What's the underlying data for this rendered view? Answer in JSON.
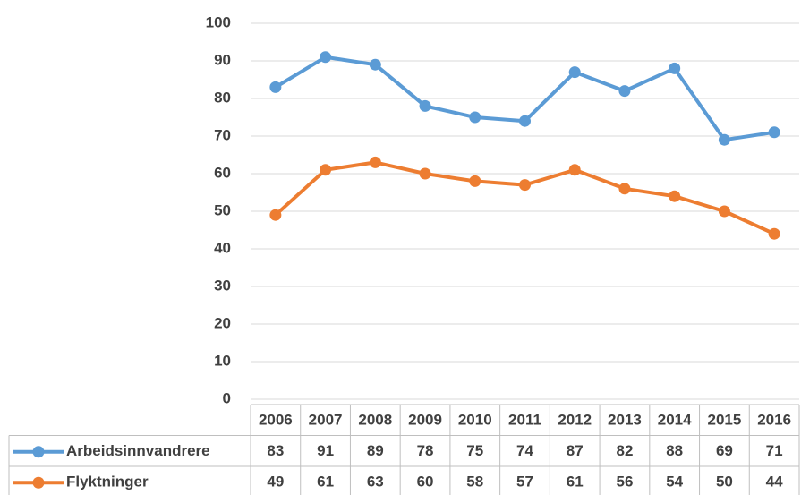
{
  "chart_data": {
    "type": "line",
    "categories": [
      "2006",
      "2007",
      "2008",
      "2009",
      "2010",
      "2011",
      "2012",
      "2013",
      "2014",
      "2015",
      "2016"
    ],
    "series": [
      {
        "name": "Arbeidsinnvandrere",
        "color": "#5b9bd5",
        "values": [
          83,
          91,
          89,
          78,
          75,
          74,
          87,
          82,
          88,
          69,
          71
        ]
      },
      {
        "name": "Flyktninger",
        "color": "#ed7d31",
        "values": [
          49,
          61,
          63,
          60,
          58,
          57,
          61,
          56,
          54,
          50,
          44
        ]
      }
    ],
    "ylim": [
      0,
      100
    ],
    "yticks": [
      0,
      10,
      20,
      30,
      40,
      50,
      60,
      70,
      80,
      90,
      100
    ],
    "grid": true,
    "data_table": true
  }
}
